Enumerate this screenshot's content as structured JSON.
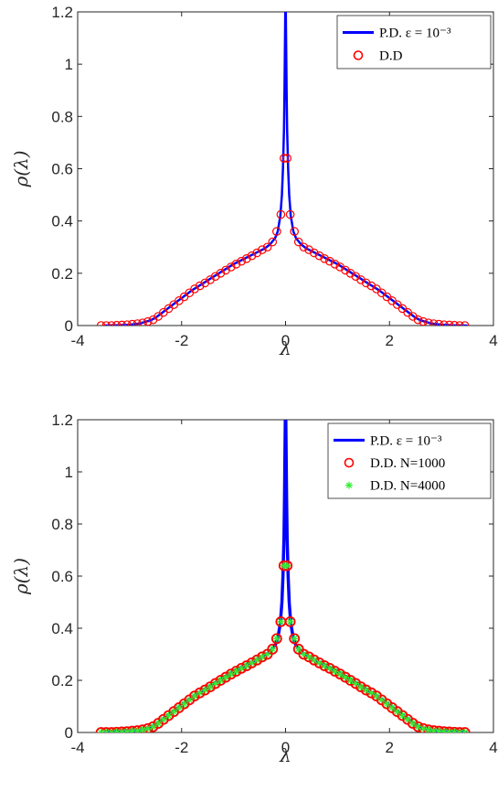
{
  "chart_data": [
    {
      "type": "line",
      "xlabel": "λ",
      "ylabel": "ρ(λ)",
      "xlim": [
        -4,
        4
      ],
      "ylim": [
        0,
        1.2
      ],
      "xticks": [
        "-4",
        "-2",
        "0",
        "2",
        "4"
      ],
      "yticks": [
        "0",
        "0.2",
        "0.4",
        "0.6",
        "0.8",
        "1",
        "1.2"
      ],
      "legend_position": "top-right",
      "series": [
        {
          "name": "P.D. ε = 10⁻³",
          "kind": "line",
          "color": "#0000ff",
          "x": [
            -3.5,
            -3.2,
            -3.0,
            -2.8,
            -2.6,
            -2.5,
            -2.4,
            -2.2,
            -2.0,
            -1.8,
            -1.6,
            -1.4,
            -1.2,
            -1.0,
            -0.8,
            -0.6,
            -0.4,
            -0.3,
            -0.2,
            -0.15,
            -0.1,
            -0.07,
            -0.05,
            -0.03,
            -0.02,
            -0.01,
            0.0,
            0.01,
            0.02,
            0.03,
            0.05,
            0.07,
            0.1,
            0.15,
            0.2,
            0.3,
            0.4,
            0.6,
            0.8,
            1.0,
            1.2,
            1.4,
            1.6,
            1.8,
            2.0,
            2.2,
            2.4,
            2.5,
            2.6,
            2.8,
            3.0,
            3.2,
            3.5
          ],
          "y": [
            0.0,
            0.001,
            0.003,
            0.008,
            0.02,
            0.03,
            0.045,
            0.075,
            0.105,
            0.135,
            0.16,
            0.185,
            0.21,
            0.235,
            0.255,
            0.275,
            0.295,
            0.31,
            0.335,
            0.36,
            0.42,
            0.5,
            0.6,
            0.75,
            0.9,
            1.1,
            1.3,
            1.1,
            0.9,
            0.75,
            0.6,
            0.5,
            0.42,
            0.36,
            0.335,
            0.31,
            0.295,
            0.275,
            0.255,
            0.235,
            0.21,
            0.185,
            0.16,
            0.135,
            0.105,
            0.075,
            0.045,
            0.03,
            0.02,
            0.008,
            0.003,
            0.001,
            0.0
          ]
        },
        {
          "name": "D.D",
          "kind": "circles",
          "color": "#ff0000",
          "x": [
            -3.55,
            -3.45,
            -3.35,
            -3.25,
            -3.15,
            -3.05,
            -2.95,
            -2.85,
            -2.75,
            -2.65,
            -2.55,
            -2.45,
            -2.35,
            -2.25,
            -2.15,
            -2.05,
            -1.95,
            -1.85,
            -1.75,
            -1.65,
            -1.55,
            -1.45,
            -1.35,
            -1.25,
            -1.15,
            -1.05,
            -0.95,
            -0.85,
            -0.75,
            -0.65,
            -0.55,
            -0.45,
            -0.35,
            -0.25,
            -0.17,
            -0.09,
            -0.03,
            0.03,
            0.09,
            0.17,
            0.25,
            0.35,
            0.45,
            0.55,
            0.65,
            0.75,
            0.85,
            0.95,
            1.05,
            1.15,
            1.25,
            1.35,
            1.45,
            1.55,
            1.65,
            1.75,
            1.85,
            1.95,
            2.05,
            2.15,
            2.25,
            2.35,
            2.45,
            2.55,
            2.65,
            2.75,
            2.85,
            2.95,
            3.05,
            3.15,
            3.25,
            3.35,
            3.45
          ],
          "y": [
            0.0,
            0.0,
            0.0,
            0.001,
            0.002,
            0.003,
            0.005,
            0.007,
            0.01,
            0.015,
            0.022,
            0.035,
            0.05,
            0.065,
            0.08,
            0.095,
            0.11,
            0.125,
            0.14,
            0.152,
            0.163,
            0.175,
            0.188,
            0.2,
            0.212,
            0.224,
            0.235,
            0.246,
            0.256,
            0.267,
            0.278,
            0.29,
            0.3,
            0.32,
            0.36,
            0.425,
            0.64,
            0.64,
            0.425,
            0.36,
            0.32,
            0.3,
            0.29,
            0.278,
            0.267,
            0.256,
            0.246,
            0.235,
            0.224,
            0.212,
            0.2,
            0.188,
            0.175,
            0.163,
            0.152,
            0.14,
            0.125,
            0.11,
            0.095,
            0.08,
            0.065,
            0.05,
            0.035,
            0.022,
            0.015,
            0.01,
            0.007,
            0.005,
            0.003,
            0.002,
            0.001,
            0.0,
            0.0
          ]
        }
      ]
    },
    {
      "type": "line",
      "xlabel": "λ",
      "ylabel": "ρ(λ)",
      "xlim": [
        -4,
        4
      ],
      "ylim": [
        0,
        1.2
      ],
      "xticks": [
        "-4",
        "-2",
        "0",
        "2",
        "4"
      ],
      "yticks": [
        "0",
        "0.2",
        "0.4",
        "0.6",
        "0.8",
        "1",
        "1.2"
      ],
      "legend_position": "top-right",
      "series": [
        {
          "name": "P.D. ε = 10⁻³",
          "kind": "line",
          "color": "#0000ff",
          "x": [
            -3.5,
            -3.2,
            -3.0,
            -2.8,
            -2.6,
            -2.5,
            -2.4,
            -2.2,
            -2.0,
            -1.8,
            -1.6,
            -1.4,
            -1.2,
            -1.0,
            -0.8,
            -0.6,
            -0.4,
            -0.3,
            -0.2,
            -0.15,
            -0.1,
            -0.07,
            -0.05,
            -0.03,
            -0.02,
            -0.01,
            0.0,
            0.01,
            0.02,
            0.03,
            0.05,
            0.07,
            0.1,
            0.15,
            0.2,
            0.3,
            0.4,
            0.6,
            0.8,
            1.0,
            1.2,
            1.4,
            1.6,
            1.8,
            2.0,
            2.2,
            2.4,
            2.5,
            2.6,
            2.8,
            3.0,
            3.2,
            3.5
          ],
          "y": [
            0.0,
            0.001,
            0.003,
            0.008,
            0.02,
            0.03,
            0.045,
            0.075,
            0.105,
            0.135,
            0.16,
            0.185,
            0.21,
            0.235,
            0.255,
            0.275,
            0.295,
            0.31,
            0.335,
            0.36,
            0.42,
            0.5,
            0.6,
            0.75,
            0.9,
            1.1,
            1.3,
            1.1,
            0.9,
            0.75,
            0.6,
            0.5,
            0.42,
            0.36,
            0.335,
            0.31,
            0.295,
            0.275,
            0.255,
            0.235,
            0.21,
            0.185,
            0.16,
            0.135,
            0.105,
            0.075,
            0.045,
            0.03,
            0.02,
            0.008,
            0.003,
            0.001,
            0.0
          ]
        },
        {
          "name": "D.D. N=1000",
          "kind": "circles",
          "color": "#ff0000",
          "x": [
            -3.55,
            -3.45,
            -3.35,
            -3.25,
            -3.15,
            -3.05,
            -2.95,
            -2.85,
            -2.75,
            -2.65,
            -2.55,
            -2.45,
            -2.35,
            -2.25,
            -2.15,
            -2.05,
            -1.95,
            -1.85,
            -1.75,
            -1.65,
            -1.55,
            -1.45,
            -1.35,
            -1.25,
            -1.15,
            -1.05,
            -0.95,
            -0.85,
            -0.75,
            -0.65,
            -0.55,
            -0.45,
            -0.35,
            -0.25,
            -0.17,
            -0.09,
            -0.03,
            0.03,
            0.09,
            0.17,
            0.25,
            0.35,
            0.45,
            0.55,
            0.65,
            0.75,
            0.85,
            0.95,
            1.05,
            1.15,
            1.25,
            1.35,
            1.45,
            1.55,
            1.65,
            1.75,
            1.85,
            1.95,
            2.05,
            2.15,
            2.25,
            2.35,
            2.45,
            2.55,
            2.65,
            2.75,
            2.85,
            2.95,
            3.05,
            3.15,
            3.25,
            3.35,
            3.45
          ],
          "y": [
            0.0,
            0.0,
            0.0,
            0.001,
            0.002,
            0.003,
            0.005,
            0.007,
            0.01,
            0.015,
            0.022,
            0.035,
            0.05,
            0.065,
            0.08,
            0.095,
            0.11,
            0.125,
            0.14,
            0.152,
            0.163,
            0.175,
            0.188,
            0.2,
            0.212,
            0.224,
            0.235,
            0.246,
            0.256,
            0.267,
            0.278,
            0.29,
            0.3,
            0.32,
            0.36,
            0.425,
            0.64,
            0.64,
            0.425,
            0.36,
            0.32,
            0.3,
            0.29,
            0.278,
            0.267,
            0.256,
            0.246,
            0.235,
            0.224,
            0.212,
            0.2,
            0.188,
            0.175,
            0.163,
            0.152,
            0.14,
            0.125,
            0.11,
            0.095,
            0.08,
            0.065,
            0.05,
            0.035,
            0.022,
            0.015,
            0.01,
            0.007,
            0.005,
            0.003,
            0.002,
            0.001,
            0.0,
            0.0
          ]
        },
        {
          "name": "D.D. N=4000",
          "kind": "stars",
          "color": "#33ee33",
          "x": [
            -3.55,
            -3.45,
            -3.35,
            -3.25,
            -3.15,
            -3.05,
            -2.95,
            -2.85,
            -2.75,
            -2.65,
            -2.55,
            -2.45,
            -2.35,
            -2.25,
            -2.15,
            -2.05,
            -1.95,
            -1.85,
            -1.75,
            -1.65,
            -1.55,
            -1.45,
            -1.35,
            -1.25,
            -1.15,
            -1.05,
            -0.95,
            -0.85,
            -0.75,
            -0.65,
            -0.55,
            -0.45,
            -0.35,
            -0.25,
            -0.17,
            -0.09,
            -0.03,
            0.03,
            0.09,
            0.17,
            0.25,
            0.35,
            0.45,
            0.55,
            0.65,
            0.75,
            0.85,
            0.95,
            1.05,
            1.15,
            1.25,
            1.35,
            1.45,
            1.55,
            1.65,
            1.75,
            1.85,
            1.95,
            2.05,
            2.15,
            2.25,
            2.35,
            2.45,
            2.55,
            2.65,
            2.75,
            2.85,
            2.95,
            3.05,
            3.15,
            3.25,
            3.35,
            3.45
          ],
          "y": [
            0.0,
            0.0,
            0.0,
            0.001,
            0.002,
            0.003,
            0.005,
            0.007,
            0.01,
            0.015,
            0.022,
            0.035,
            0.05,
            0.065,
            0.08,
            0.095,
            0.11,
            0.125,
            0.14,
            0.152,
            0.163,
            0.175,
            0.188,
            0.2,
            0.212,
            0.224,
            0.235,
            0.246,
            0.256,
            0.267,
            0.278,
            0.29,
            0.3,
            0.32,
            0.36,
            0.425,
            0.64,
            0.64,
            0.425,
            0.36,
            0.32,
            0.3,
            0.29,
            0.278,
            0.267,
            0.256,
            0.246,
            0.235,
            0.224,
            0.212,
            0.2,
            0.188,
            0.175,
            0.163,
            0.152,
            0.14,
            0.125,
            0.11,
            0.095,
            0.08,
            0.065,
            0.05,
            0.035,
            0.022,
            0.015,
            0.01,
            0.007,
            0.005,
            0.003,
            0.002,
            0.001,
            0.0,
            0.0
          ]
        }
      ]
    }
  ]
}
